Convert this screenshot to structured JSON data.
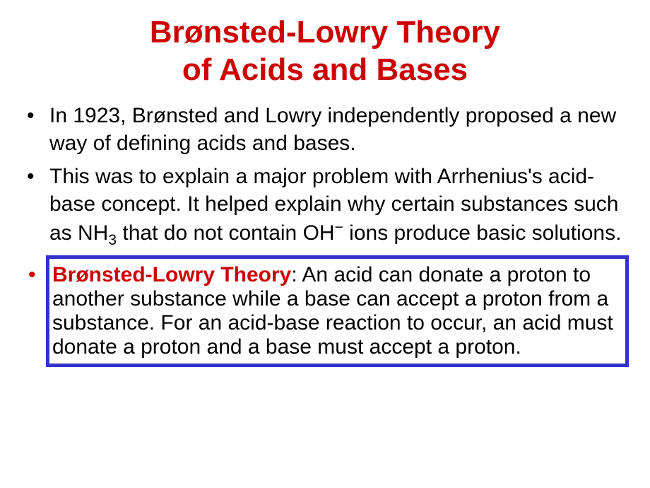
{
  "title": {
    "line1": "Brønsted-Lowry Theory",
    "line2": "of Acids and Bases",
    "color": "#cc0000",
    "fontsize": 44,
    "font_weight": "bold"
  },
  "body": {
    "color": "#000000",
    "fontsize": 30
  },
  "bullets": [
    {
      "marker": "•",
      "marker_color": "#000000",
      "text_html": "In 1923, Brønsted and Lowry independently proposed a new way of defining acids and bases.",
      "highlighted": false
    },
    {
      "marker": "•",
      "marker_color": "#000000",
      "text_html": "This was to explain a major problem with Arrhenius's acid-base concept.  It helped explain why certain substances such as NH<sub>3</sub> that do not contain OH<sup>−</sup> ions produce basic solutions.",
      "highlighted": false
    },
    {
      "marker": "•",
      "marker_color": "#cc0000",
      "term_label": "Brønsted-Lowry Theory",
      "term_color": "#cc0000",
      "text_after": ":  An acid can donate a proton to another substance while a base can accept a proton from a substance.  For an acid-base reaction to occur, an acid must donate a proton and a base must accept a proton.",
      "highlighted": true
    }
  ],
  "highlight_box": {
    "border_color": "#3333cc",
    "border_width": 5,
    "background_color": "transparent"
  },
  "background_color": "#ffffff"
}
